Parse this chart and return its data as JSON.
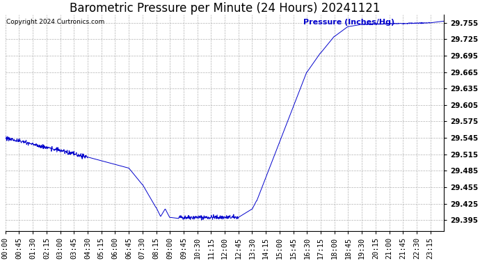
{
  "title": "Barometric Pressure per Minute (24 Hours) 20241121",
  "copyright_text": "Copyright 2024 Curtronics.com",
  "ylabel": "Pressure (Inches/Hg)",
  "line_color": "#0000cc",
  "ylabel_color": "#0000cc",
  "background_color": "#ffffff",
  "grid_color": "#aaaaaa",
  "title_fontsize": 12,
  "tick_fontsize": 7.5,
  "ylim_min": 29.375,
  "ylim_max": 29.77,
  "ytick_values": [
    29.395,
    29.425,
    29.455,
    29.485,
    29.515,
    29.545,
    29.575,
    29.605,
    29.635,
    29.665,
    29.695,
    29.725,
    29.755
  ],
  "xtick_labels": [
    "00:00",
    "00:45",
    "01:30",
    "02:15",
    "03:00",
    "03:45",
    "04:30",
    "05:15",
    "06:00",
    "06:45",
    "07:30",
    "08:15",
    "09:00",
    "09:45",
    "10:30",
    "11:15",
    "12:00",
    "12:45",
    "13:30",
    "14:15",
    "15:00",
    "15:45",
    "16:30",
    "17:15",
    "18:00",
    "18:45",
    "19:30",
    "20:15",
    "21:00",
    "21:45",
    "22:30",
    "23:15"
  ]
}
